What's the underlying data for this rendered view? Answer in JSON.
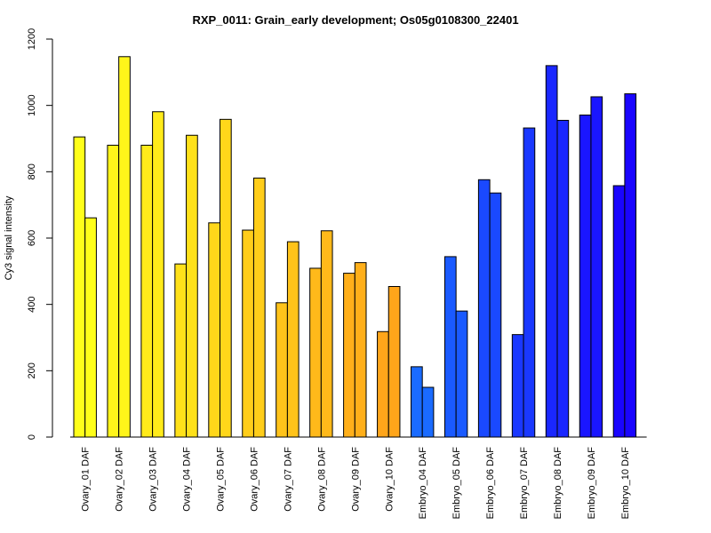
{
  "chart_data": {
    "type": "bar",
    "title": "RXP_0011: Grain_early development; Os05g0108300_22401",
    "xlabel": "",
    "ylabel": "Cy3 signal intensity",
    "ylim": [
      0,
      1200
    ],
    "yticks": [
      0,
      200,
      400,
      600,
      800,
      1000,
      1200
    ],
    "grid": false,
    "legend": "none",
    "categories": [
      "Ovary_01 DAF",
      "Ovary_02 DAF",
      "Ovary_03 DAF",
      "Ovary_04 DAF",
      "Ovary_05 DAF",
      "Ovary_06 DAF",
      "Ovary_07 DAF",
      "Ovary_08 DAF",
      "Ovary_09 DAF",
      "Ovary_10 DAF",
      "Embryo_04 DAF",
      "Embryo_05 DAF",
      "Embryo_06 DAF",
      "Embryo_07 DAF",
      "Embryo_08 DAF",
      "Embryo_09 DAF",
      "Embryo_10 DAF"
    ],
    "series": [
      {
        "values": [
          905,
          880,
          880,
          522,
          646,
          624,
          405,
          509,
          494,
          318,
          212,
          544,
          776,
          309,
          1120,
          971,
          758
        ]
      },
      {
        "values": [
          661,
          1147,
          981,
          910,
          958,
          781,
          589,
          622,
          526,
          454,
          150,
          380,
          736,
          932,
          955,
          1026,
          1035
        ]
      }
    ],
    "category_colors": [
      "#FFFF1A",
      "#FFF51A",
      "#FFEB1A",
      "#FFE11A",
      "#FFD71A",
      "#FFCD1A",
      "#FFC31A",
      "#FFB91A",
      "#FFAF1A",
      "#FFA51A",
      "#1A6BFF",
      "#1A5AFF",
      "#1A49FF",
      "#1A38FF",
      "#1A27FF",
      "#1A16FF",
      "#1A05FF"
    ]
  }
}
